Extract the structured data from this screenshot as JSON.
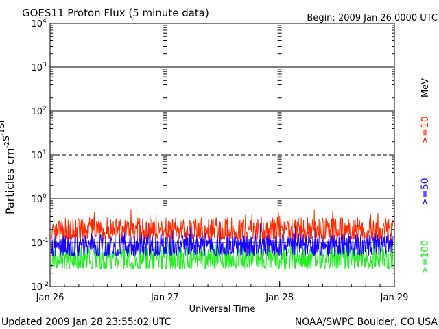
{
  "header": {
    "title": "GOES11 Proton Flux (5 minute data)",
    "begin": "Begin: 2009 Jan 26 0000 UTC"
  },
  "footer": {
    "updated": "Updated 2009 Jan 28 23:55:02 UTC",
    "credit": "NOAA/SWPC Boulder, CO USA"
  },
  "chart_data": {
    "type": "line",
    "title": "GOES11 Proton Flux (5 minute data)",
    "xlabel": "Universal Time",
    "ylabel_parts": [
      "Particles cm",
      "-2",
      "s",
      "-1",
      "sr",
      "-1"
    ],
    "y_scale": "log",
    "ylim": [
      0.01,
      10000
    ],
    "y_ticks": [
      {
        "base": "10",
        "exp": "4",
        "value": 10000
      },
      {
        "base": "10",
        "exp": "3",
        "value": 1000
      },
      {
        "base": "10",
        "exp": "2",
        "value": 100
      },
      {
        "base": "10",
        "exp": "1",
        "value": 10
      },
      {
        "base": "10",
        "exp": "0",
        "value": 1
      },
      {
        "base": "10",
        "exp": "-1",
        "value": 0.1
      },
      {
        "base": "10",
        "exp": "-2",
        "value": 0.01
      }
    ],
    "x_ticks": [
      "Jan 26",
      "Jan 27",
      "Jan 28",
      "Jan 29"
    ],
    "xlim": [
      "2009-01-26T00:00",
      "2009-01-29T00:00"
    ],
    "unit_label": "MeV",
    "reference_lines": [
      {
        "value": 1000,
        "style": "solid"
      },
      {
        "value": 100,
        "style": "solid"
      },
      {
        "value": 10,
        "style": "dashed"
      },
      {
        "value": 1,
        "style": "solid"
      },
      {
        "value": 0.1,
        "style": "solid"
      }
    ],
    "series": [
      {
        "name": ">=10",
        "color": "#ff2a00",
        "typical": 0.2,
        "range": [
          0.12,
          0.6
        ]
      },
      {
        "name": ">=50",
        "color": "#1a00ff",
        "typical": 0.09,
        "range": [
          0.05,
          0.3
        ]
      },
      {
        "name": ">=100",
        "color": "#22ee22",
        "typical": 0.045,
        "range": [
          0.025,
          0.1
        ]
      }
    ]
  }
}
